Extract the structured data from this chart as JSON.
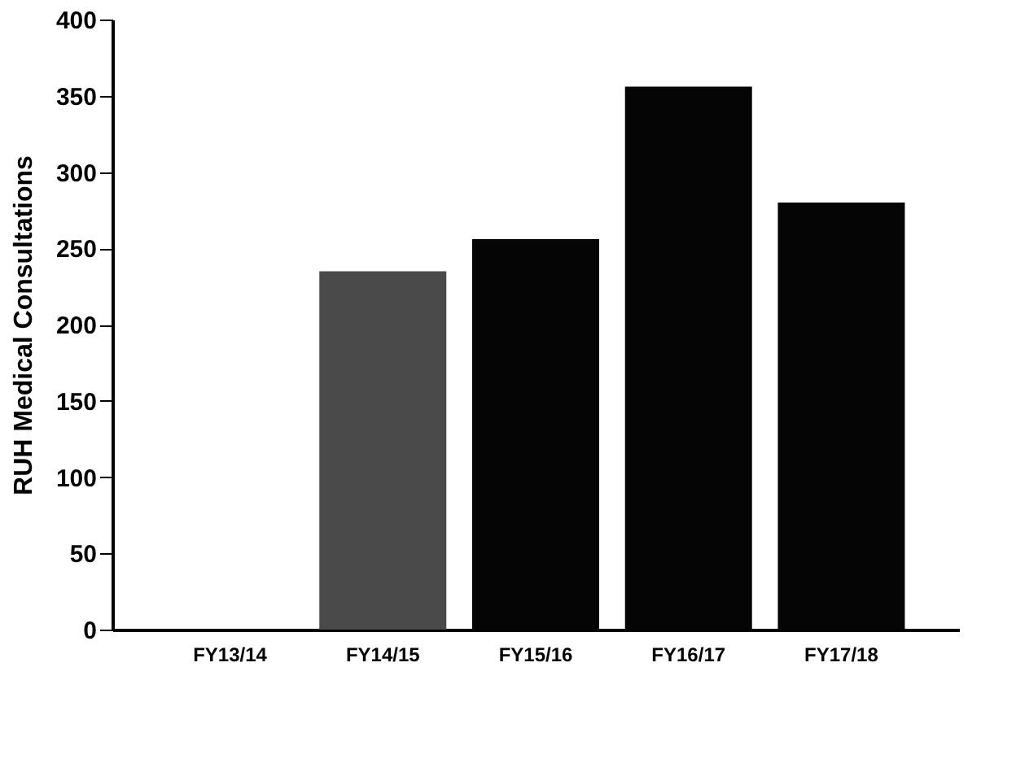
{
  "chart_data": {
    "type": "bar",
    "ylabel": "RUH Medical Consultations",
    "categories": [
      "FY13/14",
      "FY14/15",
      "FY15/16",
      "FY16/17",
      "FY17/18"
    ],
    "values": [
      null,
      235,
      256,
      356,
      280
    ],
    "colors": [
      "#000000",
      "#4a4a4a",
      "#050505",
      "#050505",
      "#050505"
    ],
    "ylim": [
      0,
      400
    ],
    "yticks": [
      0,
      50,
      100,
      150,
      200,
      250,
      300,
      350,
      400
    ],
    "grid": false
  }
}
